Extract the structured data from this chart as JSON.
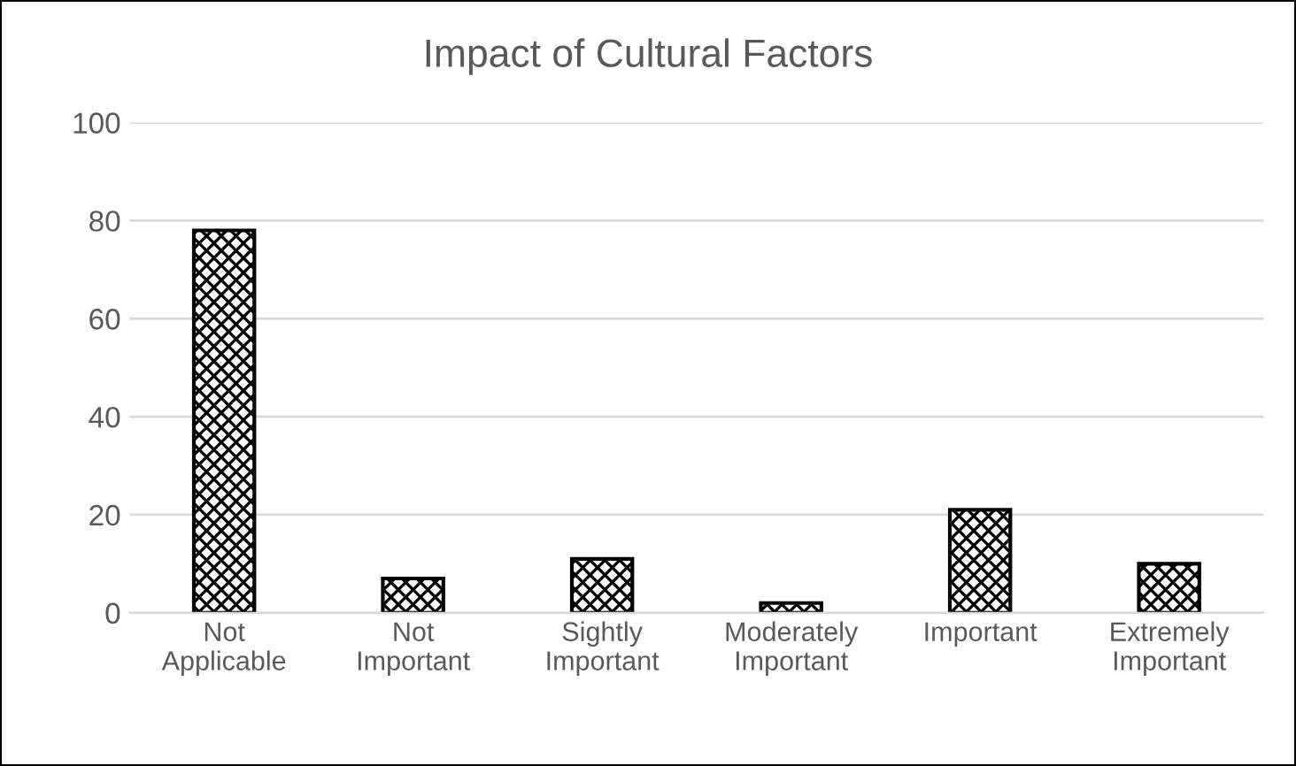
{
  "chart_data": {
    "type": "bar",
    "title": "Impact of Cultural Factors",
    "categories": [
      "Not\nApplicable",
      "Not\nImportant",
      "Sightly\nImportant",
      "Moderately\nImportant",
      "Important",
      "Extremely\nImportant"
    ],
    "values": [
      78,
      7,
      11,
      2,
      21,
      10
    ],
    "color": "#000000",
    "ylim": [
      0,
      100
    ],
    "yticks": [
      0,
      20,
      40,
      60,
      80,
      100
    ],
    "grid": "y"
  }
}
